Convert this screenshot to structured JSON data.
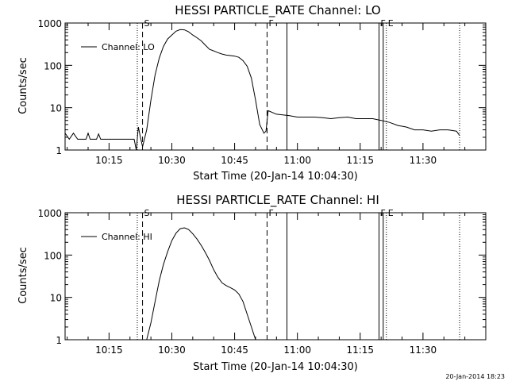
{
  "chart_data": [
    {
      "type": "line",
      "title": "HESSI PARTICLE_RATE Channel: LO",
      "xlabel": "Start Time (20-Jan-14 10:04:30)",
      "ylabel": "Counts/sec",
      "xlim": [
        "10:04:30",
        "11:45:00"
      ],
      "ylim": [
        1,
        1000
      ],
      "y_scale": "log",
      "x_ticks": [
        "10:15",
        "10:30",
        "10:45",
        "11:00",
        "11:15",
        "11:30"
      ],
      "y_ticks": [
        "1",
        "10",
        "100",
        "1000"
      ],
      "legend": {
        "position": "top-left",
        "label": "Channel: LO"
      },
      "markers": [
        {
          "time": "10:21:45",
          "style": "dotted",
          "label": ""
        },
        {
          "time": "10:23:00",
          "style": "dashed",
          "label": "S"
        },
        {
          "time": "10:52:45",
          "style": "dashed",
          "label": "F"
        },
        {
          "time": "10:57:30",
          "style": "solid",
          "label": ""
        },
        {
          "time": "11:19:30",
          "style": "solid",
          "label": "F"
        },
        {
          "time": "11:20:30",
          "style": "solid",
          "label": ""
        },
        {
          "time": "11:21:15",
          "style": "dotted",
          "label": "E"
        },
        {
          "time": "11:38:45",
          "style": "dotted",
          "label": ""
        }
      ],
      "series": [
        {
          "name": "Channel: LO",
          "points": [
            [
              "10:04:30",
              2.5
            ],
            [
              "10:05:30",
              1.8
            ],
            [
              "10:06:30",
              2.5
            ],
            [
              "10:07:30",
              1.8
            ],
            [
              "10:08:00",
              1.8
            ],
            [
              "10:09:30",
              1.8
            ],
            [
              "10:10:00",
              2.5
            ],
            [
              "10:10:30",
              1.8
            ],
            [
              "10:12:00",
              1.8
            ],
            [
              "10:12:30",
              2.4
            ],
            [
              "10:13:00",
              1.8
            ],
            [
              "10:21:00",
              1.8
            ],
            [
              "10:21:30",
              1.0
            ],
            [
              "10:22:00",
              3.5
            ],
            [
              "10:22:30",
              2.0
            ],
            [
              "10:23:00",
              1.2
            ],
            [
              "10:24:00",
              3.0
            ],
            [
              "10:25:00",
              15
            ],
            [
              "10:26:00",
              60
            ],
            [
              "10:27:00",
              150
            ],
            [
              "10:28:00",
              280
            ],
            [
              "10:29:00",
              420
            ],
            [
              "10:30:00",
              520
            ],
            [
              "10:31:00",
              640
            ],
            [
              "10:32:00",
              700
            ],
            [
              "10:33:00",
              690
            ],
            [
              "10:34:00",
              620
            ],
            [
              "10:35:00",
              520
            ],
            [
              "10:36:00",
              450
            ],
            [
              "10:37:00",
              380
            ],
            [
              "10:38:00",
              300
            ],
            [
              "10:39:00",
              240
            ],
            [
              "10:40:00",
              220
            ],
            [
              "10:41:00",
              200
            ],
            [
              "10:42:00",
              185
            ],
            [
              "10:43:00",
              175
            ],
            [
              "10:44:00",
              170
            ],
            [
              "10:45:00",
              165
            ],
            [
              "10:46:00",
              155
            ],
            [
              "10:47:00",
              130
            ],
            [
              "10:48:00",
              95
            ],
            [
              "10:49:00",
              50
            ],
            [
              "10:50:00",
              15
            ],
            [
              "10:51:00",
              4
            ],
            [
              "10:52:00",
              2.5
            ],
            [
              "10:52:30",
              2.8
            ],
            [
              "10:53:00",
              8.5
            ],
            [
              "10:55:00",
              7.0
            ],
            [
              "10:58:00",
              6.5
            ],
            [
              "11:00:00",
              6.0
            ],
            [
              "11:02:00",
              6.0
            ],
            [
              "11:04:00",
              6.0
            ],
            [
              "11:06:00",
              5.8
            ],
            [
              "11:08:00",
              5.5
            ],
            [
              "11:10:00",
              5.8
            ],
            [
              "11:12:00",
              6.0
            ],
            [
              "11:14:00",
              5.5
            ],
            [
              "11:16:00",
              5.5
            ],
            [
              "11:18:00",
              5.5
            ],
            [
              "11:20:00",
              5.0
            ],
            [
              "11:22:00",
              4.5
            ],
            [
              "11:24:00",
              3.8
            ],
            [
              "11:26:00",
              3.5
            ],
            [
              "11:28:00",
              3.0
            ],
            [
              "11:30:00",
              3.0
            ],
            [
              "11:32:00",
              2.8
            ],
            [
              "11:34:00",
              3.0
            ],
            [
              "11:36:00",
              3.0
            ],
            [
              "11:38:00",
              2.8
            ],
            [
              "11:38:45",
              2.2
            ]
          ]
        }
      ]
    },
    {
      "type": "line",
      "title": "HESSI PARTICLE_RATE Channel: HI",
      "xlabel": "Start Time (20-Jan-14 10:04:30)",
      "ylabel": "Counts/sec",
      "xlim": [
        "10:04:30",
        "11:45:00"
      ],
      "ylim": [
        1,
        1000
      ],
      "y_scale": "log",
      "x_ticks": [
        "10:15",
        "10:30",
        "10:45",
        "11:00",
        "11:15",
        "11:30"
      ],
      "y_ticks": [
        "1",
        "10",
        "100",
        "1000"
      ],
      "legend": {
        "position": "top-left",
        "label": "Channel: HI"
      },
      "markers": [
        {
          "time": "10:21:45",
          "style": "dotted",
          "label": ""
        },
        {
          "time": "10:23:00",
          "style": "dashed",
          "label": "S"
        },
        {
          "time": "10:52:45",
          "style": "dashed",
          "label": "F"
        },
        {
          "time": "10:57:30",
          "style": "solid",
          "label": ""
        },
        {
          "time": "11:19:30",
          "style": "solid",
          "label": "F"
        },
        {
          "time": "11:20:30",
          "style": "solid",
          "label": ""
        },
        {
          "time": "11:21:15",
          "style": "dotted",
          "label": "E"
        },
        {
          "time": "11:38:45",
          "style": "dotted",
          "label": ""
        }
      ],
      "series": [
        {
          "name": "Channel: HI",
          "points": [
            [
              "10:24:00",
              1.0
            ],
            [
              "10:25:00",
              2.5
            ],
            [
              "10:26:00",
              8
            ],
            [
              "10:27:00",
              25
            ],
            [
              "10:28:00",
              60
            ],
            [
              "10:29:00",
              120
            ],
            [
              "10:30:00",
              220
            ],
            [
              "10:31:00",
              330
            ],
            [
              "10:32:00",
              420
            ],
            [
              "10:33:00",
              440
            ],
            [
              "10:34:00",
              400
            ],
            [
              "10:35:00",
              320
            ],
            [
              "10:36:00",
              240
            ],
            [
              "10:37:00",
              170
            ],
            [
              "10:38:00",
              115
            ],
            [
              "10:39:00",
              75
            ],
            [
              "10:40:00",
              45
            ],
            [
              "10:41:00",
              30
            ],
            [
              "10:42:00",
              22
            ],
            [
              "10:43:00",
              19
            ],
            [
              "10:44:00",
              17
            ],
            [
              "10:45:00",
              15
            ],
            [
              "10:46:00",
              12
            ],
            [
              "10:47:00",
              8
            ],
            [
              "10:48:00",
              4
            ],
            [
              "10:49:00",
              2
            ],
            [
              "10:50:00",
              1.0
            ]
          ]
        }
      ]
    }
  ],
  "footer": {
    "timestamp": "20-Jan-2014 18:23"
  }
}
